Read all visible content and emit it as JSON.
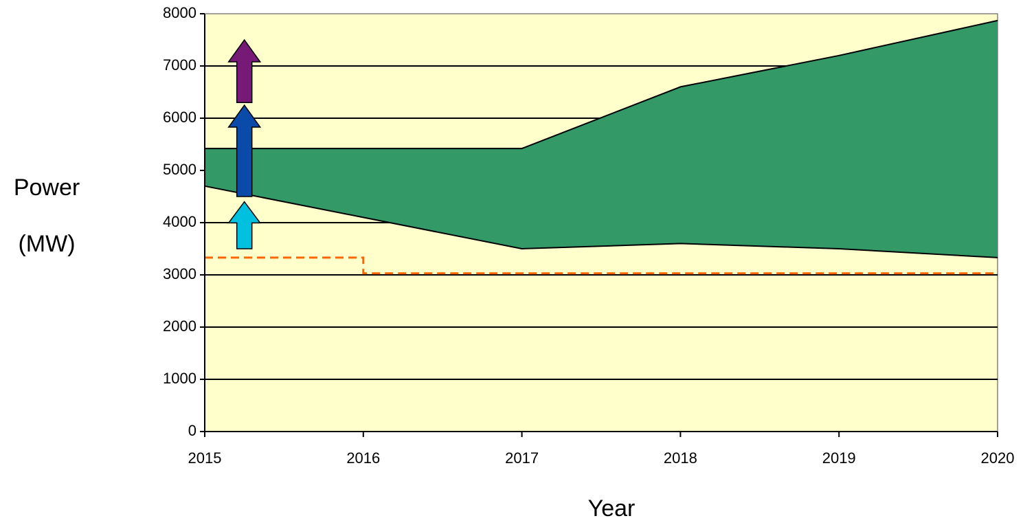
{
  "chart_data": {
    "type": "area",
    "xlabel": "Year",
    "ylabel": [
      "Power",
      "(MW)"
    ],
    "x": [
      2015,
      2016,
      2017,
      2018,
      2019,
      2020
    ],
    "xlim": [
      2015,
      2020
    ],
    "xticks": [
      2015,
      2016,
      2017,
      2018,
      2019,
      2020
    ],
    "ylim": [
      0,
      8000
    ],
    "yticks": [
      0,
      1000,
      2000,
      3000,
      4000,
      5000,
      6000,
      7000,
      8000
    ],
    "grid": true,
    "background": "#ffffcc",
    "band": {
      "color": "#339966",
      "upper": [
        5420,
        5420,
        5420,
        6600,
        7200,
        7870
      ],
      "lower": [
        4700,
        4100,
        3500,
        3600,
        3500,
        3330
      ]
    },
    "line": {
      "color": "#ff6600",
      "dashed": true,
      "x": [
        2015,
        2016,
        2016,
        2020
      ],
      "values": [
        3330,
        3330,
        3030,
        3030
      ]
    },
    "arrows": [
      {
        "color": "#00c0e0",
        "x": 2015.25,
        "from": 3500,
        "to": 4400
      },
      {
        "color": "#0a4aa8",
        "x": 2015.25,
        "from": 4500,
        "to": 6250
      },
      {
        "color": "#771a77",
        "x": 2015.25,
        "from": 6300,
        "to": 7500
      }
    ]
  }
}
